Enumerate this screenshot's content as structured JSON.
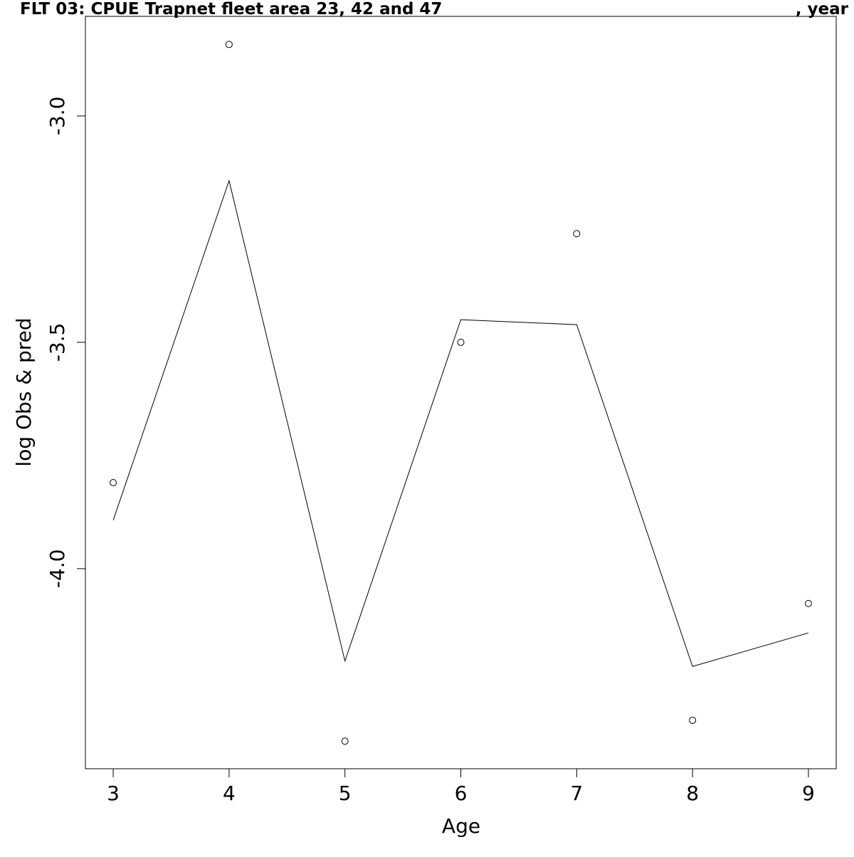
{
  "chart_data": {
    "type": "line",
    "title": "FLT 03: CPUE Trapnet fleet area 23, 42 and 47",
    "title_suffix": ", year",
    "xlabel": "Age",
    "ylabel": "log Obs & pred",
    "x": [
      3,
      4,
      5,
      6,
      7,
      8,
      9
    ],
    "x_ticks": [
      "3",
      "4",
      "5",
      "6",
      "7",
      "8",
      "9"
    ],
    "y_ticks": [
      "-3.0",
      "-3.5",
      "-4.0"
    ],
    "xlim": [
      2.76,
      9.24
    ],
    "ylim": [
      -4.442,
      -2.78
    ],
    "grid": false,
    "series": [
      {
        "role": "observed",
        "style": "points",
        "values": [
          -3.81,
          -2.842,
          -4.381,
          -3.5,
          -3.26,
          -4.335,
          -4.077
        ]
      },
      {
        "role": "predicted",
        "style": "line",
        "values": [
          -3.893,
          -3.143,
          -4.204,
          -3.45,
          -3.461,
          -4.216,
          -4.142
        ]
      }
    ]
  }
}
